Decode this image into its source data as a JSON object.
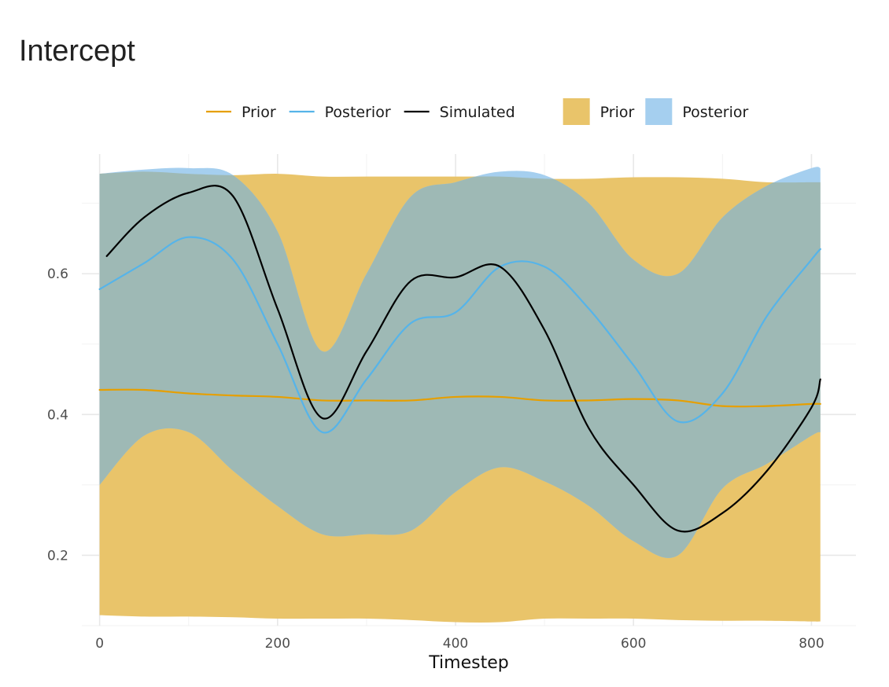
{
  "chart_data": {
    "type": "area",
    "title": "Intercept",
    "xlabel": "Timestep",
    "ylabel": "",
    "xlim": [
      -20,
      850
    ],
    "ylim": [
      0.1,
      0.77
    ],
    "x_ticks": [
      0,
      200,
      400,
      600,
      800
    ],
    "y_ticks": [
      0.2,
      0.4,
      0.6
    ],
    "grid": true,
    "legend_position": "top",
    "legend": {
      "lines": [
        {
          "name": "Prior",
          "color": "#E69F00"
        },
        {
          "name": "Posterior",
          "color": "#56B4E9"
        },
        {
          "name": "Simulated",
          "color": "#000000"
        }
      ],
      "fills": [
        {
          "name": "Prior",
          "color": "#E9C46A"
        },
        {
          "name": "Posterior",
          "color": "#A5CFEF"
        }
      ]
    },
    "colors": {
      "prior_line": "#E69F00",
      "posterior_line": "#56B4E9",
      "simulated_line": "#000000",
      "prior_fill": "#E9C46A",
      "posterior_fill": "#A5CFEF",
      "overlap_fill": "#9EB9B5"
    },
    "x": [
      0,
      50,
      100,
      150,
      200,
      250,
      300,
      350,
      400,
      450,
      500,
      550,
      600,
      650,
      700,
      750,
      800,
      810
    ],
    "series": [
      {
        "name": "Prior",
        "kind": "line",
        "values": [
          0.435,
          0.435,
          0.43,
          0.427,
          0.425,
          0.42,
          0.42,
          0.42,
          0.425,
          0.425,
          0.42,
          0.42,
          0.422,
          0.42,
          0.412,
          0.412,
          0.415,
          0.415
        ]
      },
      {
        "name": "Posterior",
        "kind": "line",
        "values": [
          0.578,
          0.615,
          0.652,
          0.62,
          0.5,
          0.375,
          0.45,
          0.53,
          0.545,
          0.61,
          0.61,
          0.55,
          0.47,
          0.39,
          0.43,
          0.54,
          0.62,
          0.635
        ]
      },
      {
        "name": "Simulated",
        "kind": "line",
        "x_start": 8,
        "values": [
          0.625,
          0.68,
          0.715,
          0.71,
          0.55,
          0.395,
          0.49,
          0.59,
          0.595,
          0.61,
          0.52,
          0.38,
          0.3,
          0.235,
          0.26,
          0.32,
          0.41,
          0.45
        ]
      },
      {
        "name": "Prior",
        "kind": "band",
        "lower": [
          0.115,
          0.113,
          0.113,
          0.112,
          0.11,
          0.11,
          0.11,
          0.108,
          0.105,
          0.105,
          0.11,
          0.11,
          0.11,
          0.108,
          0.107,
          0.107,
          0.106,
          0.106
        ],
        "upper": [
          0.742,
          0.745,
          0.742,
          0.74,
          0.742,
          0.738,
          0.738,
          0.738,
          0.738,
          0.738,
          0.735,
          0.735,
          0.737,
          0.737,
          0.735,
          0.73,
          0.73,
          0.73
        ]
      },
      {
        "name": "Posterior",
        "kind": "band",
        "lower": [
          0.3,
          0.37,
          0.375,
          0.32,
          0.27,
          0.23,
          0.23,
          0.235,
          0.29,
          0.325,
          0.305,
          0.27,
          0.22,
          0.2,
          0.295,
          0.33,
          0.37,
          0.375
        ],
        "upper": [
          0.742,
          0.748,
          0.75,
          0.74,
          0.66,
          0.49,
          0.6,
          0.71,
          0.73,
          0.745,
          0.74,
          0.7,
          0.62,
          0.6,
          0.68,
          0.725,
          0.75,
          0.75
        ]
      }
    ]
  }
}
